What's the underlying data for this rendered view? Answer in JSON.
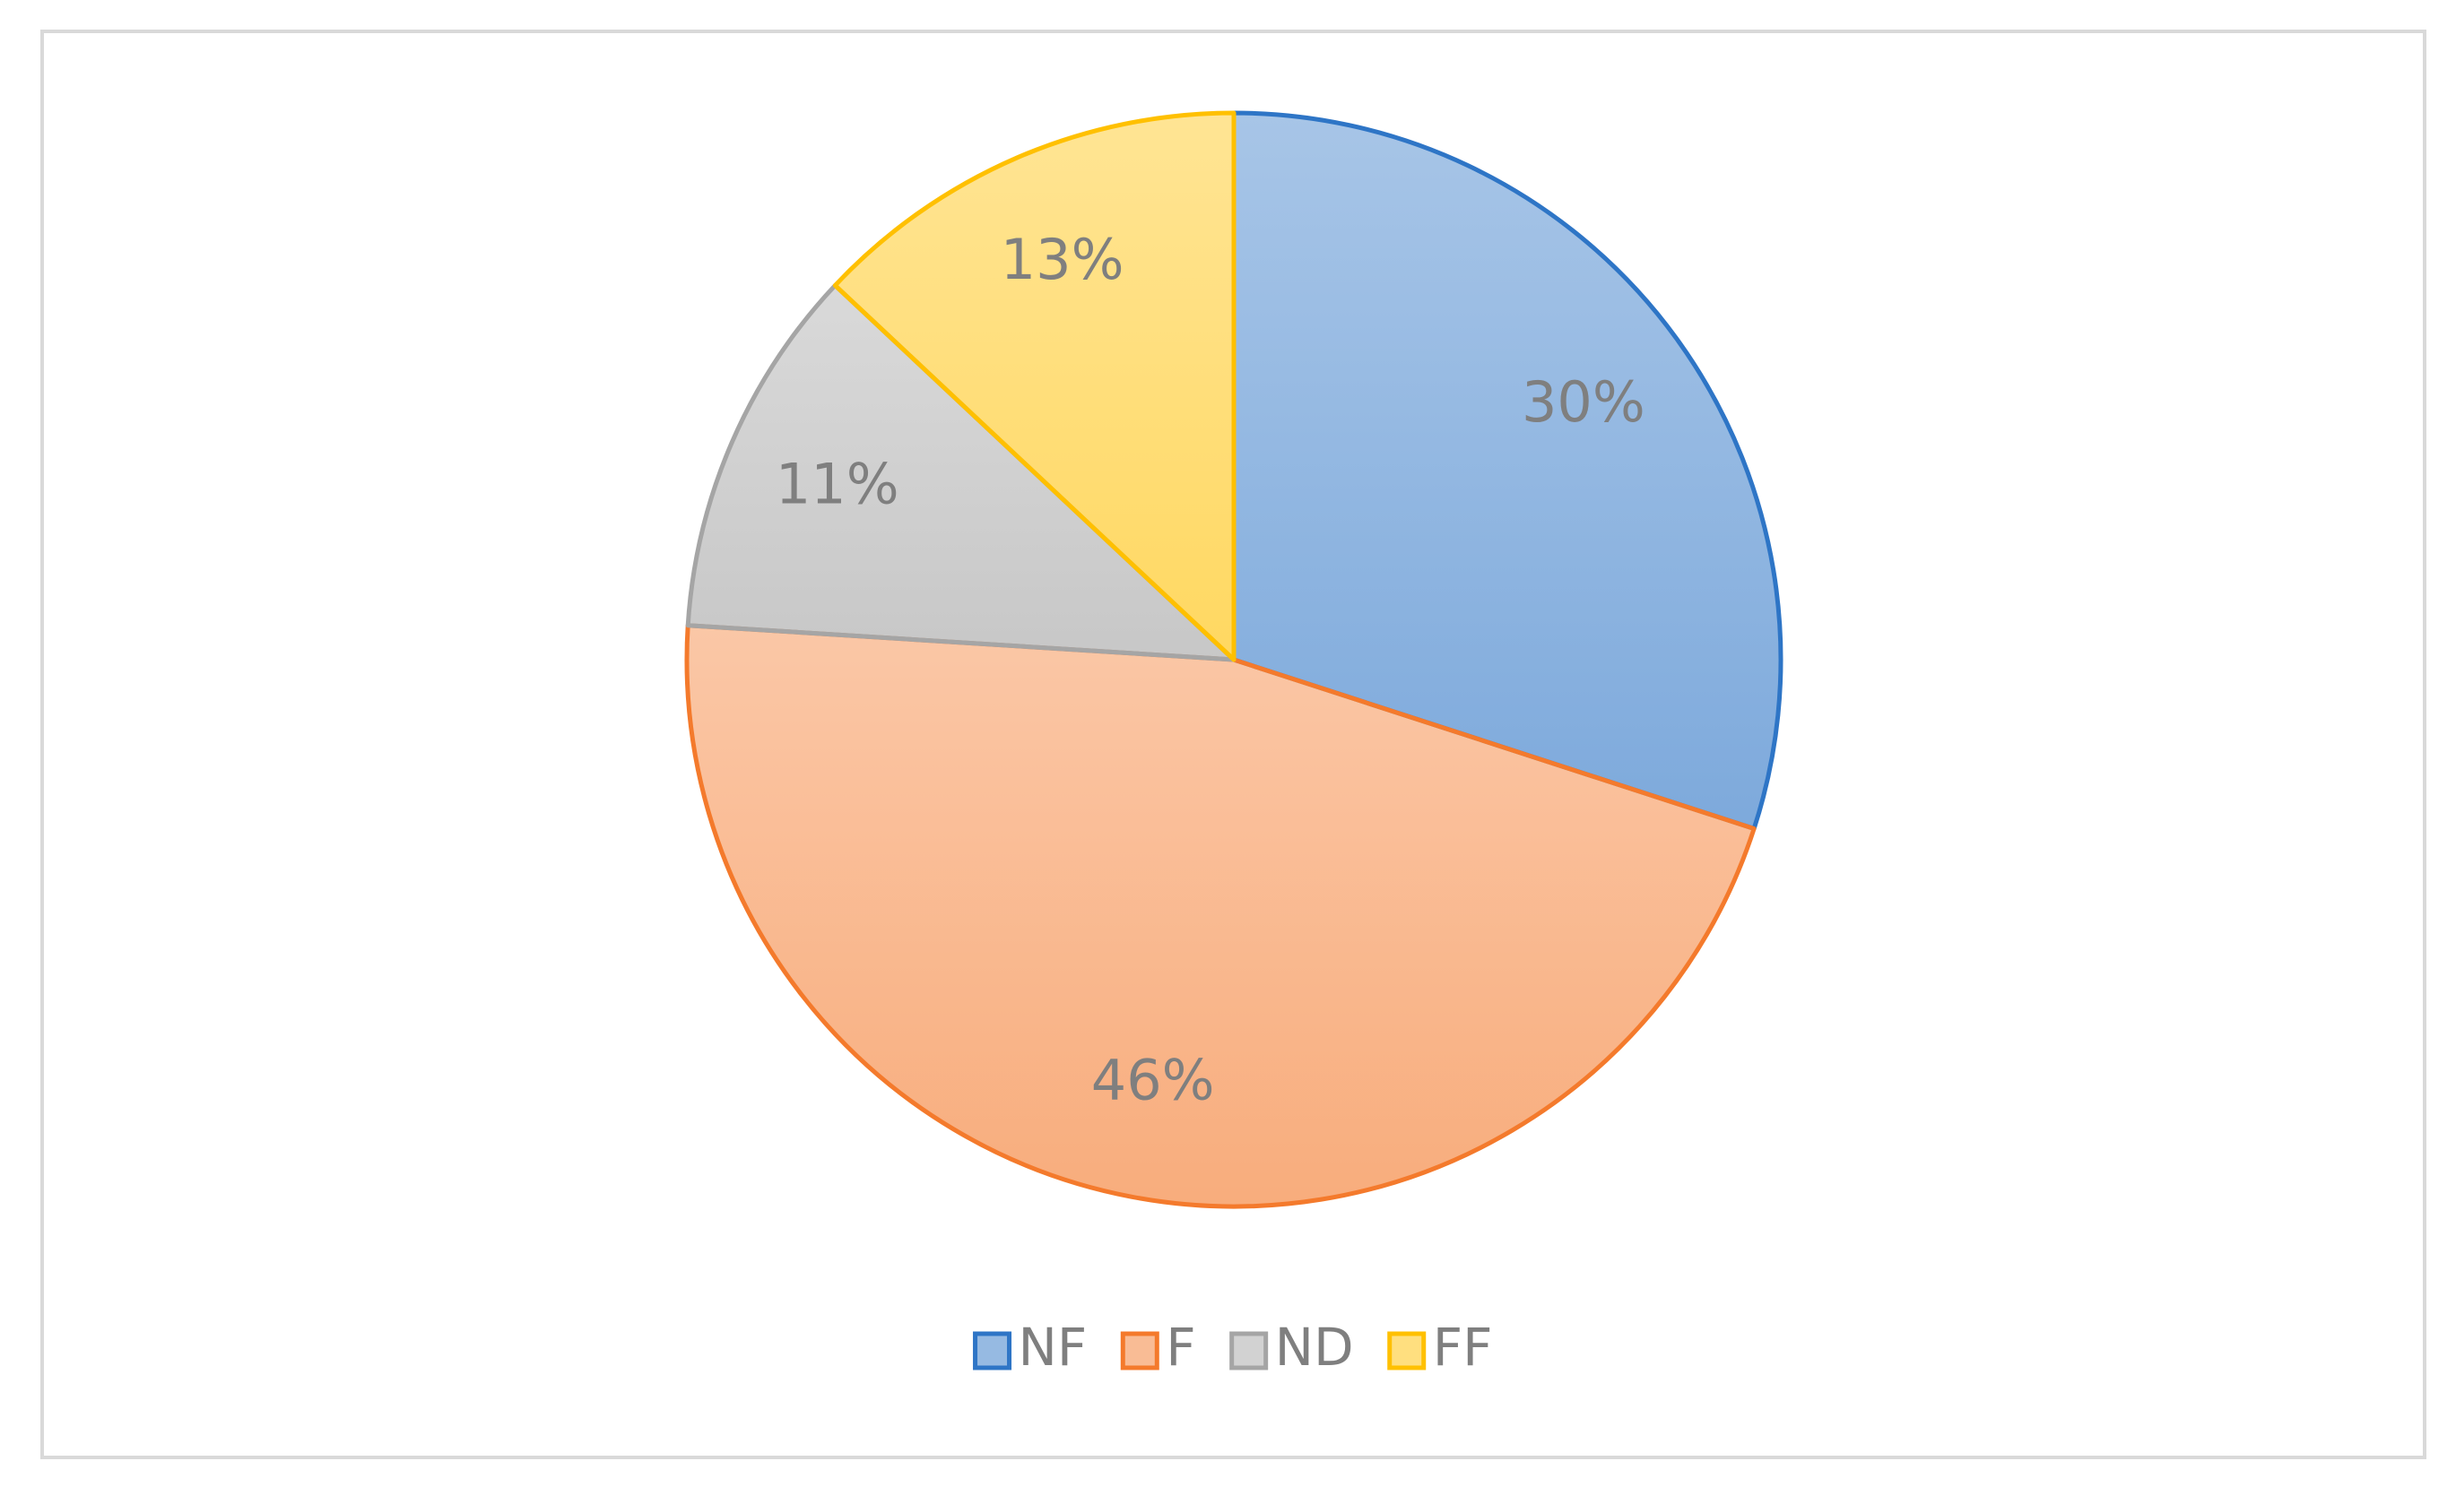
{
  "chart_data": {
    "type": "pie",
    "categories": [
      "NF",
      "F",
      "ND",
      "FF"
    ],
    "values": [
      30,
      46,
      11,
      13
    ],
    "value_labels": [
      "30%",
      "46%",
      "11%",
      "13%"
    ],
    "colors": [
      "#2e75c6",
      "#f47a2c",
      "#a5a5a5",
      "#ffc000"
    ],
    "legend": "bottom"
  }
}
